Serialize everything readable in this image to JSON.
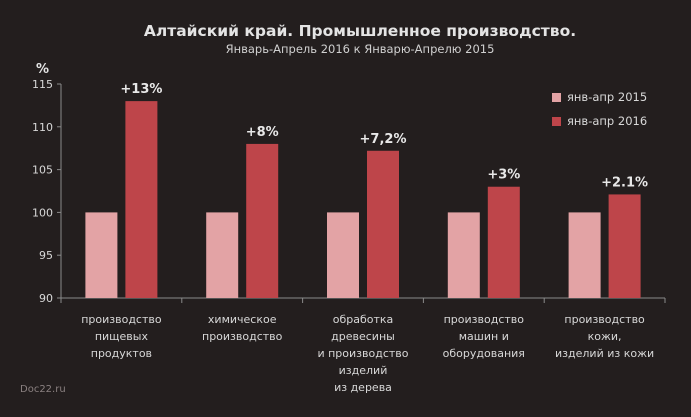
{
  "chart_data": {
    "type": "bar",
    "title": "Алтайский край. Промышленное производство.",
    "subtitle": "Январь-Апрель 2016 к Январю-Апрелю 2015",
    "ylabel": "%",
    "xlabel": "",
    "ylim": [
      90,
      115
    ],
    "yticks": [
      90,
      95,
      100,
      105,
      110,
      115
    ],
    "grid": false,
    "legend_position": "top-right",
    "categories": [
      [
        "производство",
        "пищевых",
        "продуктов"
      ],
      [
        "химическое",
        "производство"
      ],
      [
        "обработка",
        "древесины",
        "и производство",
        "изделий",
        "из дерева"
      ],
      [
        "производство",
        "машин и",
        "оборудования"
      ],
      [
        "производство",
        "кожи,",
        "изделий из кожи"
      ]
    ],
    "series": [
      {
        "name": "янв-апр 2015",
        "color": "#e3a3a5",
        "values": [
          100,
          100,
          100,
          100,
          100
        ]
      },
      {
        "name": "янв-апр 2016",
        "color": "#be454a",
        "values": [
          113,
          108,
          107.2,
          103,
          102.1
        ]
      }
    ],
    "data_labels": [
      "+13%",
      "+8%",
      "+7,2%",
      "+3%",
      "+2.1%"
    ]
  },
  "watermark": "Doc22.ru",
  "colors": {
    "background": "#231e1e",
    "axis": "#8a8a8a",
    "text": "#d8d8d8"
  }
}
